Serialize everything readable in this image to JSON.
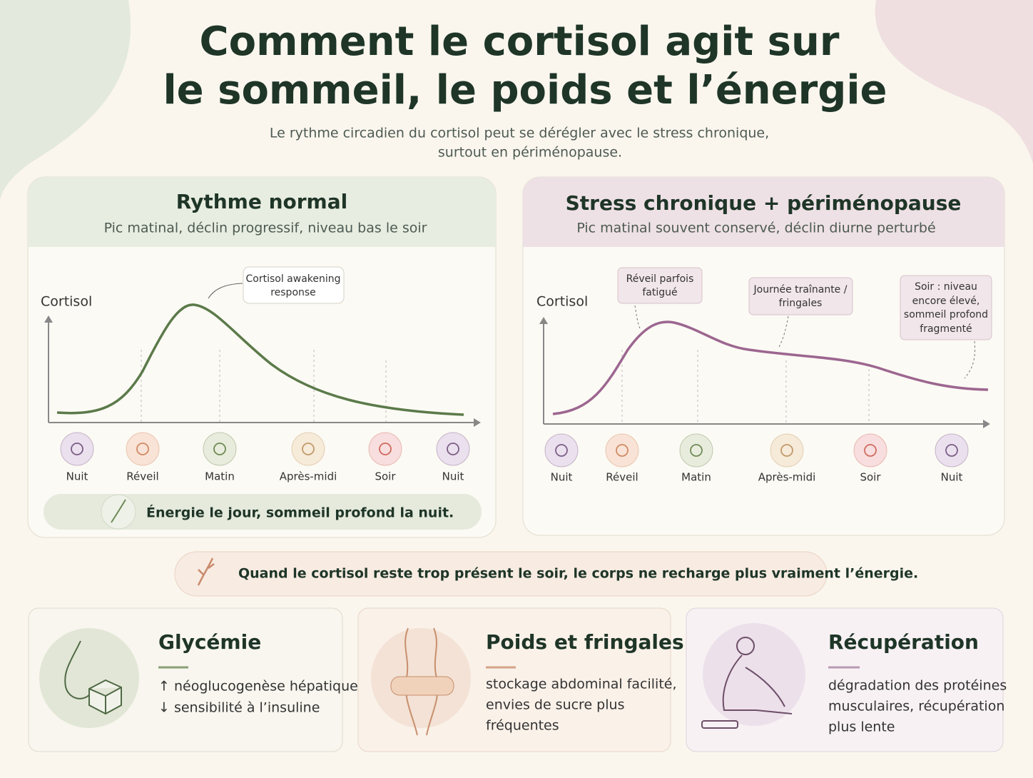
{
  "header": {
    "title": [
      "Comment le cortisol agit sur",
      "le sommeil, le poids et l’énergie"
    ],
    "subtitle": [
      "Le rythme circadien du cortisol peut se dérégler avec le stress chronique,",
      "surtout en périménopause."
    ]
  },
  "panels": [
    {
      "title": "Rythme normal",
      "subtitle": "Pic matinal, déclin progressif, niveau bas le soir",
      "y_label": "Cortisol",
      "callouts": [
        [
          "Cortisol awakening",
          "response"
        ]
      ],
      "phases": [
        "Nuit",
        "Réveil",
        "Matin",
        "Après-midi",
        "Soir",
        "Nuit"
      ],
      "footer": "Énergie le jour, sommeil profond la nuit."
    },
    {
      "title": "Stress chronique + périménopause",
      "subtitle": "Pic matinal souvent conservé, déclin diurne perturbé",
      "y_label": "Cortisol",
      "callouts": [
        [
          "Réveil parfois",
          "fatigué"
        ],
        [
          "Journée traînante /",
          "fringales"
        ],
        [
          "Soir : niveau",
          "encore élevé,",
          "sommeil profond",
          "fragmenté"
        ]
      ],
      "phases": [
        "Nuit",
        "Réveil",
        "Matin",
        "Après-midi",
        "Soir",
        "Nuit"
      ]
    }
  ],
  "banner": "Quand le cortisol reste trop présent le soir, le corps ne recharge plus vraiment l’énergie.",
  "cards": [
    {
      "title": "Glycémie",
      "text": [
        "↑ néoglucogenèse hépatique,",
        "↓ sensibilité à l’insuline"
      ]
    },
    {
      "title": "Poids et fringales",
      "text": [
        "stockage abdominal facilité,",
        "envies de sucre plus",
        "fréquentes"
      ]
    },
    {
      "title": "Récupération",
      "text": [
        "dégradation des protéines",
        "musculaires, récupération",
        "plus lente"
      ]
    }
  ]
}
